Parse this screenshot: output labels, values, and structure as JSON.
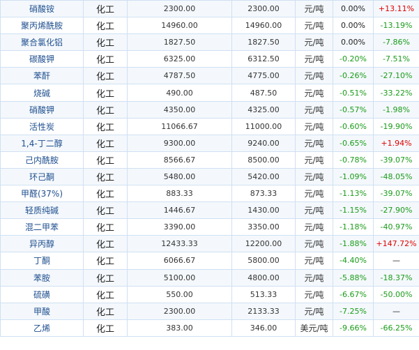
{
  "colors": {
    "up": "#e00000",
    "down": "#1a9b1a",
    "link": "#1f4f8f",
    "border": "#cfe0f2"
  },
  "rows": [
    {
      "name": "硝酸铵",
      "cat": "化工",
      "p1": "2300.00",
      "p2": "2300.00",
      "unit": "元/吨",
      "pct": "0.00%",
      "chg": "+13.11%",
      "dir": "up"
    },
    {
      "name": "聚丙烯酰胺",
      "cat": "化工",
      "p1": "14960.00",
      "p2": "14960.00",
      "unit": "元/吨",
      "pct": "0.00%",
      "chg": "-13.19%",
      "dir": "down"
    },
    {
      "name": "聚合氯化铝",
      "cat": "化工",
      "p1": "1827.50",
      "p2": "1827.50",
      "unit": "元/吨",
      "pct": "0.00%",
      "chg": "-7.86%",
      "dir": "down"
    },
    {
      "name": "碳酸钾",
      "cat": "化工",
      "p1": "6325.00",
      "p2": "6312.50",
      "unit": "元/吨",
      "pct": "-0.20%",
      "chg": "-7.51%",
      "dir": "down"
    },
    {
      "name": "苯酐",
      "cat": "化工",
      "p1": "4787.50",
      "p2": "4775.00",
      "unit": "元/吨",
      "pct": "-0.26%",
      "chg": "-27.10%",
      "dir": "down"
    },
    {
      "name": "烧碱",
      "cat": "化工",
      "p1": "490.00",
      "p2": "487.50",
      "unit": "元/吨",
      "pct": "-0.51%",
      "chg": "-33.22%",
      "dir": "down"
    },
    {
      "name": "硝酸钾",
      "cat": "化工",
      "p1": "4350.00",
      "p2": "4325.00",
      "unit": "元/吨",
      "pct": "-0.57%",
      "chg": "-1.98%",
      "dir": "down"
    },
    {
      "name": "活性炭",
      "cat": "化工",
      "p1": "11066.67",
      "p2": "11000.00",
      "unit": "元/吨",
      "pct": "-0.60%",
      "chg": "-19.90%",
      "dir": "down"
    },
    {
      "name": "1,4-丁二醇",
      "cat": "化工",
      "p1": "9300.00",
      "p2": "9240.00",
      "unit": "元/吨",
      "pct": "-0.65%",
      "chg": "+1.94%",
      "dir": "up"
    },
    {
      "name": "己内酰胺",
      "cat": "化工",
      "p1": "8566.67",
      "p2": "8500.00",
      "unit": "元/吨",
      "pct": "-0.78%",
      "chg": "-39.07%",
      "dir": "down"
    },
    {
      "name": "环己酮",
      "cat": "化工",
      "p1": "5480.00",
      "p2": "5420.00",
      "unit": "元/吨",
      "pct": "-1.09%",
      "chg": "-48.05%",
      "dir": "down"
    },
    {
      "name": "甲醛(37%)",
      "cat": "化工",
      "p1": "883.33",
      "p2": "873.33",
      "unit": "元/吨",
      "pct": "-1.13%",
      "chg": "-39.07%",
      "dir": "down"
    },
    {
      "name": "轻质纯碱",
      "cat": "化工",
      "p1": "1446.67",
      "p2": "1430.00",
      "unit": "元/吨",
      "pct": "-1.15%",
      "chg": "-27.90%",
      "dir": "down"
    },
    {
      "name": "混二甲苯",
      "cat": "化工",
      "p1": "3390.00",
      "p2": "3350.00",
      "unit": "元/吨",
      "pct": "-1.18%",
      "chg": "-40.97%",
      "dir": "down"
    },
    {
      "name": "异丙醇",
      "cat": "化工",
      "p1": "12433.33",
      "p2": "12200.00",
      "unit": "元/吨",
      "pct": "-1.88%",
      "chg": "+147.72%",
      "dir": "up"
    },
    {
      "name": "丁酮",
      "cat": "化工",
      "p1": "6066.67",
      "p2": "5800.00",
      "unit": "元/吨",
      "pct": "-4.40%",
      "chg": "—",
      "dir": "flat"
    },
    {
      "name": "苯胺",
      "cat": "化工",
      "p1": "5100.00",
      "p2": "4800.00",
      "unit": "元/吨",
      "pct": "-5.88%",
      "chg": "-18.37%",
      "dir": "down"
    },
    {
      "name": "硫磺",
      "cat": "化工",
      "p1": "550.00",
      "p2": "513.33",
      "unit": "元/吨",
      "pct": "-6.67%",
      "chg": "-50.00%",
      "dir": "down"
    },
    {
      "name": "甲酸",
      "cat": "化工",
      "p1": "2300.00",
      "p2": "2133.33",
      "unit": "元/吨",
      "pct": "-7.25%",
      "chg": "—",
      "dir": "flat"
    },
    {
      "name": "乙烯",
      "cat": "化工",
      "p1": "383.00",
      "p2": "346.00",
      "unit": "美元/吨",
      "pct": "-9.66%",
      "chg": "-66.25%",
      "dir": "down"
    }
  ]
}
